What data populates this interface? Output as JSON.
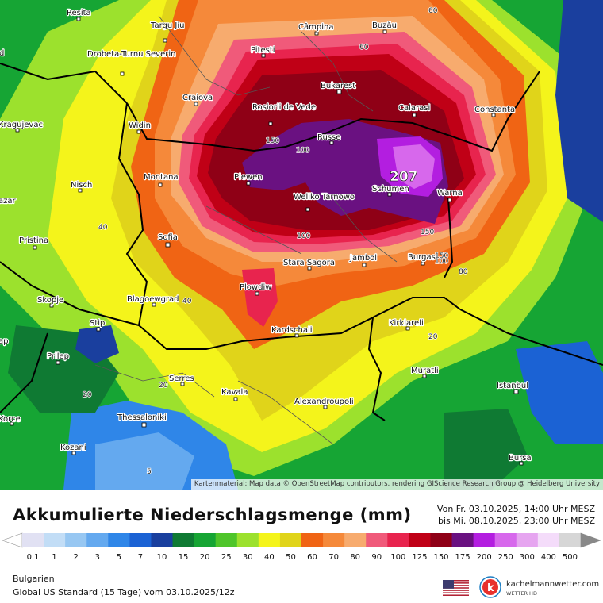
{
  "map": {
    "cities": [
      {
        "name": "Resita"
      },
      {
        "name": "Targu Jiu"
      },
      {
        "name": "Pitesti"
      },
      {
        "name": "Câmpina"
      },
      {
        "name": "Buzău"
      },
      {
        "name": "Drobeta-Turnu Severin"
      },
      {
        "name": "Craiova"
      },
      {
        "name": "Bukarest"
      },
      {
        "name": "Rosiorii de Vede"
      },
      {
        "name": "Calarasi"
      },
      {
        "name": "Constanta"
      },
      {
        "name": "Kragujevac"
      },
      {
        "name": "Widin"
      },
      {
        "name": "Russe"
      },
      {
        "name": "Montana"
      },
      {
        "name": "Plewen"
      },
      {
        "name": "Schumen"
      },
      {
        "name": "Warna"
      },
      {
        "name": "Nisch"
      },
      {
        "name": "Weliko Tarnowo"
      },
      {
        "name": "Sofia"
      },
      {
        "name": "Pristina"
      },
      {
        "name": "Stara Sagora"
      },
      {
        "name": "Jambol"
      },
      {
        "name": "Burgas"
      },
      {
        "name": "Plowdiw"
      },
      {
        "name": "Skopje"
      },
      {
        "name": "Blagoewgrad"
      },
      {
        "name": "Stip"
      },
      {
        "name": "Kirklareli"
      },
      {
        "name": "Kardschali"
      },
      {
        "name": "Prilep"
      },
      {
        "name": "Muratli"
      },
      {
        "name": "Serres"
      },
      {
        "name": "Istanbul"
      },
      {
        "name": "Kavala"
      },
      {
        "name": "Alexandroupoli"
      },
      {
        "name": "Thessaloniki"
      },
      {
        "name": "Korce"
      },
      {
        "name": "Kozani"
      },
      {
        "name": "Bursa"
      }
    ],
    "contour_labels": [
      "60",
      "60",
      "150",
      "100",
      "100",
      "150",
      "150",
      "40",
      "100",
      "80",
      "40",
      "20",
      "20",
      "20",
      "5"
    ],
    "max_value": "207",
    "edge_labels": [
      "d",
      "Kragujevac",
      "azar",
      "ap",
      "Korçe"
    ],
    "attribution": "Kartenmaterial: Map data © OpenStreetMap contributors, rendering GIScience Research Group @ Heidelberg University"
  },
  "legend": {
    "title": "Akkumulierte Niederschlagsmenge (mm)",
    "period_from": "Von Fr. 03.10.2025, 14:00 Uhr MESZ",
    "period_to": "bis Mi. 08.10.2025, 23:00 Uhr MESZ",
    "ticks": [
      "0.1",
      "1",
      "2",
      "3",
      "5",
      "7",
      "10",
      "15",
      "20",
      "25",
      "30",
      "40",
      "50",
      "60",
      "70",
      "80",
      "90",
      "100",
      "125",
      "150",
      "175",
      "200",
      "250",
      "300",
      "400",
      "500"
    ],
    "colors": [
      "#e1e1f3",
      "#c2ddf6",
      "#97c7f2",
      "#64a9ef",
      "#2f86e8",
      "#1b62d4",
      "#1a3f9e",
      "#0f7a33",
      "#16a534",
      "#4fc52a",
      "#9ce12d",
      "#f4f41b",
      "#e0d41a",
      "#f06414",
      "#f5893a",
      "#f7ab6e",
      "#f05a7a",
      "#e8244e",
      "#c00016",
      "#8f0016",
      "#6a1181",
      "#b31ee0",
      "#d768ec",
      "#e6a5f0",
      "#f4dcfa",
      "#d6d6d6"
    ],
    "region": "Bulgarien",
    "model": "Global US Standard (15 Tage) vom  03.10.2025/12z",
    "brand_name": "kachelmannwetter.com",
    "brand_sub": "WETTER HD"
  }
}
